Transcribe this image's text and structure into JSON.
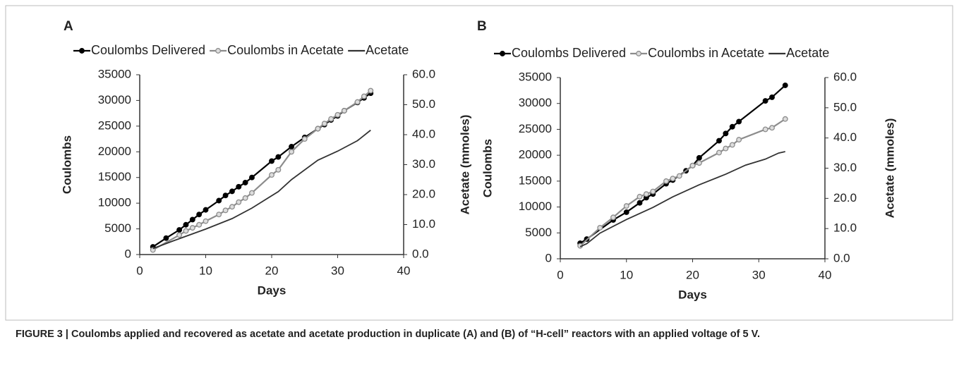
{
  "chart_data": [
    {
      "type": "line",
      "panel_label": "A",
      "xlabel": "Days",
      "ylabel": "Coulombs",
      "y2label": "Acetate (mmoles)",
      "xlim": [
        0,
        40
      ],
      "xticks": [
        0,
        10,
        20,
        30,
        40
      ],
      "ylim": [
        0,
        35000
      ],
      "yticks": [
        0,
        5000,
        10000,
        15000,
        20000,
        25000,
        30000,
        35000
      ],
      "y2lim": [
        0,
        60
      ],
      "y2ticks": [
        {
          "value": 0,
          "label": "0.0"
        },
        {
          "value": 10,
          "label": "10.0"
        },
        {
          "value": 20,
          "label": "20.0"
        },
        {
          "value": 30,
          "label": "30.0"
        },
        {
          "value": 40,
          "label": "40.0"
        },
        {
          "value": 50,
          "label": "50.0"
        },
        {
          "value": 60,
          "label": "60.0"
        }
      ],
      "legend": "top",
      "series": [
        {
          "name": "Coulombs Delivered",
          "color": "#000000",
          "marker": true,
          "x": [
            2,
            4,
            6,
            7,
            8,
            9,
            10,
            12,
            13,
            14,
            15,
            16,
            17,
            20,
            21,
            23,
            25,
            27,
            28,
            29,
            30,
            31,
            33,
            34,
            35
          ],
          "values": [
            1500,
            3200,
            4800,
            5800,
            6800,
            7800,
            8700,
            10500,
            11500,
            12300,
            13200,
            14000,
            15000,
            18200,
            19000,
            21000,
            22800,
            24500,
            25300,
            26200,
            27000,
            28000,
            29600,
            30500,
            31400
          ]
        },
        {
          "name": "Coulombs in Acetate",
          "color": "#8c8c8c",
          "marker": true,
          "x": [
            2,
            6,
            7,
            8,
            9,
            10,
            12,
            13,
            14,
            15,
            16,
            17,
            20,
            21,
            23,
            25,
            27,
            28,
            29,
            30,
            31,
            33,
            34,
            35
          ],
          "values": [
            900,
            3800,
            4600,
            5200,
            5800,
            6500,
            7800,
            8600,
            9300,
            10200,
            11000,
            12000,
            15500,
            16500,
            20000,
            22500,
            24500,
            25500,
            26400,
            27200,
            28000,
            29700,
            30800,
            31900
          ]
        },
        {
          "name": "Acetate",
          "color": "#333333",
          "marker": false,
          "axis": "y2",
          "x": [
            2,
            5,
            10,
            14,
            17,
            21,
            23,
            27,
            30,
            33,
            35
          ],
          "values": [
            2.0,
            4.5,
            8.5,
            12.0,
            15.5,
            21.0,
            25.0,
            31.5,
            34.5,
            38.0,
            41.5
          ]
        }
      ]
    },
    {
      "type": "line",
      "panel_label": "B",
      "xlabel": "Days",
      "ylabel": "Coulombs",
      "y2label": "Acetate (mmoles)",
      "xlim": [
        0,
        40
      ],
      "xticks": [
        0,
        10,
        20,
        30,
        40
      ],
      "ylim": [
        0,
        35000
      ],
      "yticks": [
        0,
        5000,
        10000,
        15000,
        20000,
        25000,
        30000,
        35000
      ],
      "y2lim": [
        0,
        60
      ],
      "y2ticks": [
        {
          "value": 0,
          "label": "0.0"
        },
        {
          "value": 10,
          "label": "10.0"
        },
        {
          "value": 20,
          "label": "20.0"
        },
        {
          "value": 30,
          "label": "30.0"
        },
        {
          "value": 40,
          "label": "40.0"
        },
        {
          "value": 50,
          "label": "50.0"
        },
        {
          "value": 60,
          "label": "60.0"
        }
      ],
      "legend": "top",
      "series": [
        {
          "name": "Coulombs Delivered",
          "color": "#000000",
          "marker": true,
          "x": [
            3,
            4,
            8,
            10,
            12,
            13,
            14,
            16,
            17,
            19,
            20,
            21,
            24,
            25,
            26,
            27,
            31,
            32,
            34
          ],
          "values": [
            3000,
            3800,
            7500,
            9000,
            10800,
            11800,
            12500,
            14500,
            15200,
            17000,
            18000,
            19500,
            22800,
            24200,
            25500,
            26500,
            30500,
            31200,
            33500
          ]
        },
        {
          "name": "Coulombs in Acetate",
          "color": "#8c8c8c",
          "marker": true,
          "x": [
            3,
            6,
            8,
            10,
            12,
            13,
            14,
            16,
            17,
            18,
            20,
            21,
            24,
            25,
            26,
            27,
            31,
            32,
            34
          ],
          "values": [
            2500,
            6000,
            8000,
            10200,
            12000,
            12500,
            13000,
            15000,
            15500,
            16000,
            18000,
            18500,
            20500,
            21300,
            22000,
            23000,
            25000,
            25300,
            27000
          ]
        },
        {
          "name": "Acetate",
          "color": "#333333",
          "marker": false,
          "axis": "y2",
          "x": [
            3,
            4,
            6,
            10,
            14,
            17,
            21,
            25,
            28,
            31,
            33,
            34
          ],
          "values": [
            4.0,
            5.0,
            8.5,
            13.0,
            17.0,
            20.5,
            24.5,
            28.0,
            31.0,
            33.0,
            35.0,
            35.5
          ]
        }
      ]
    }
  ],
  "caption": "FIGURE 3 | Coulombs applied and recovered as acetate and acetate production in duplicate (A) and (B) of “H-cell” reactors with an applied voltage of 5 V."
}
